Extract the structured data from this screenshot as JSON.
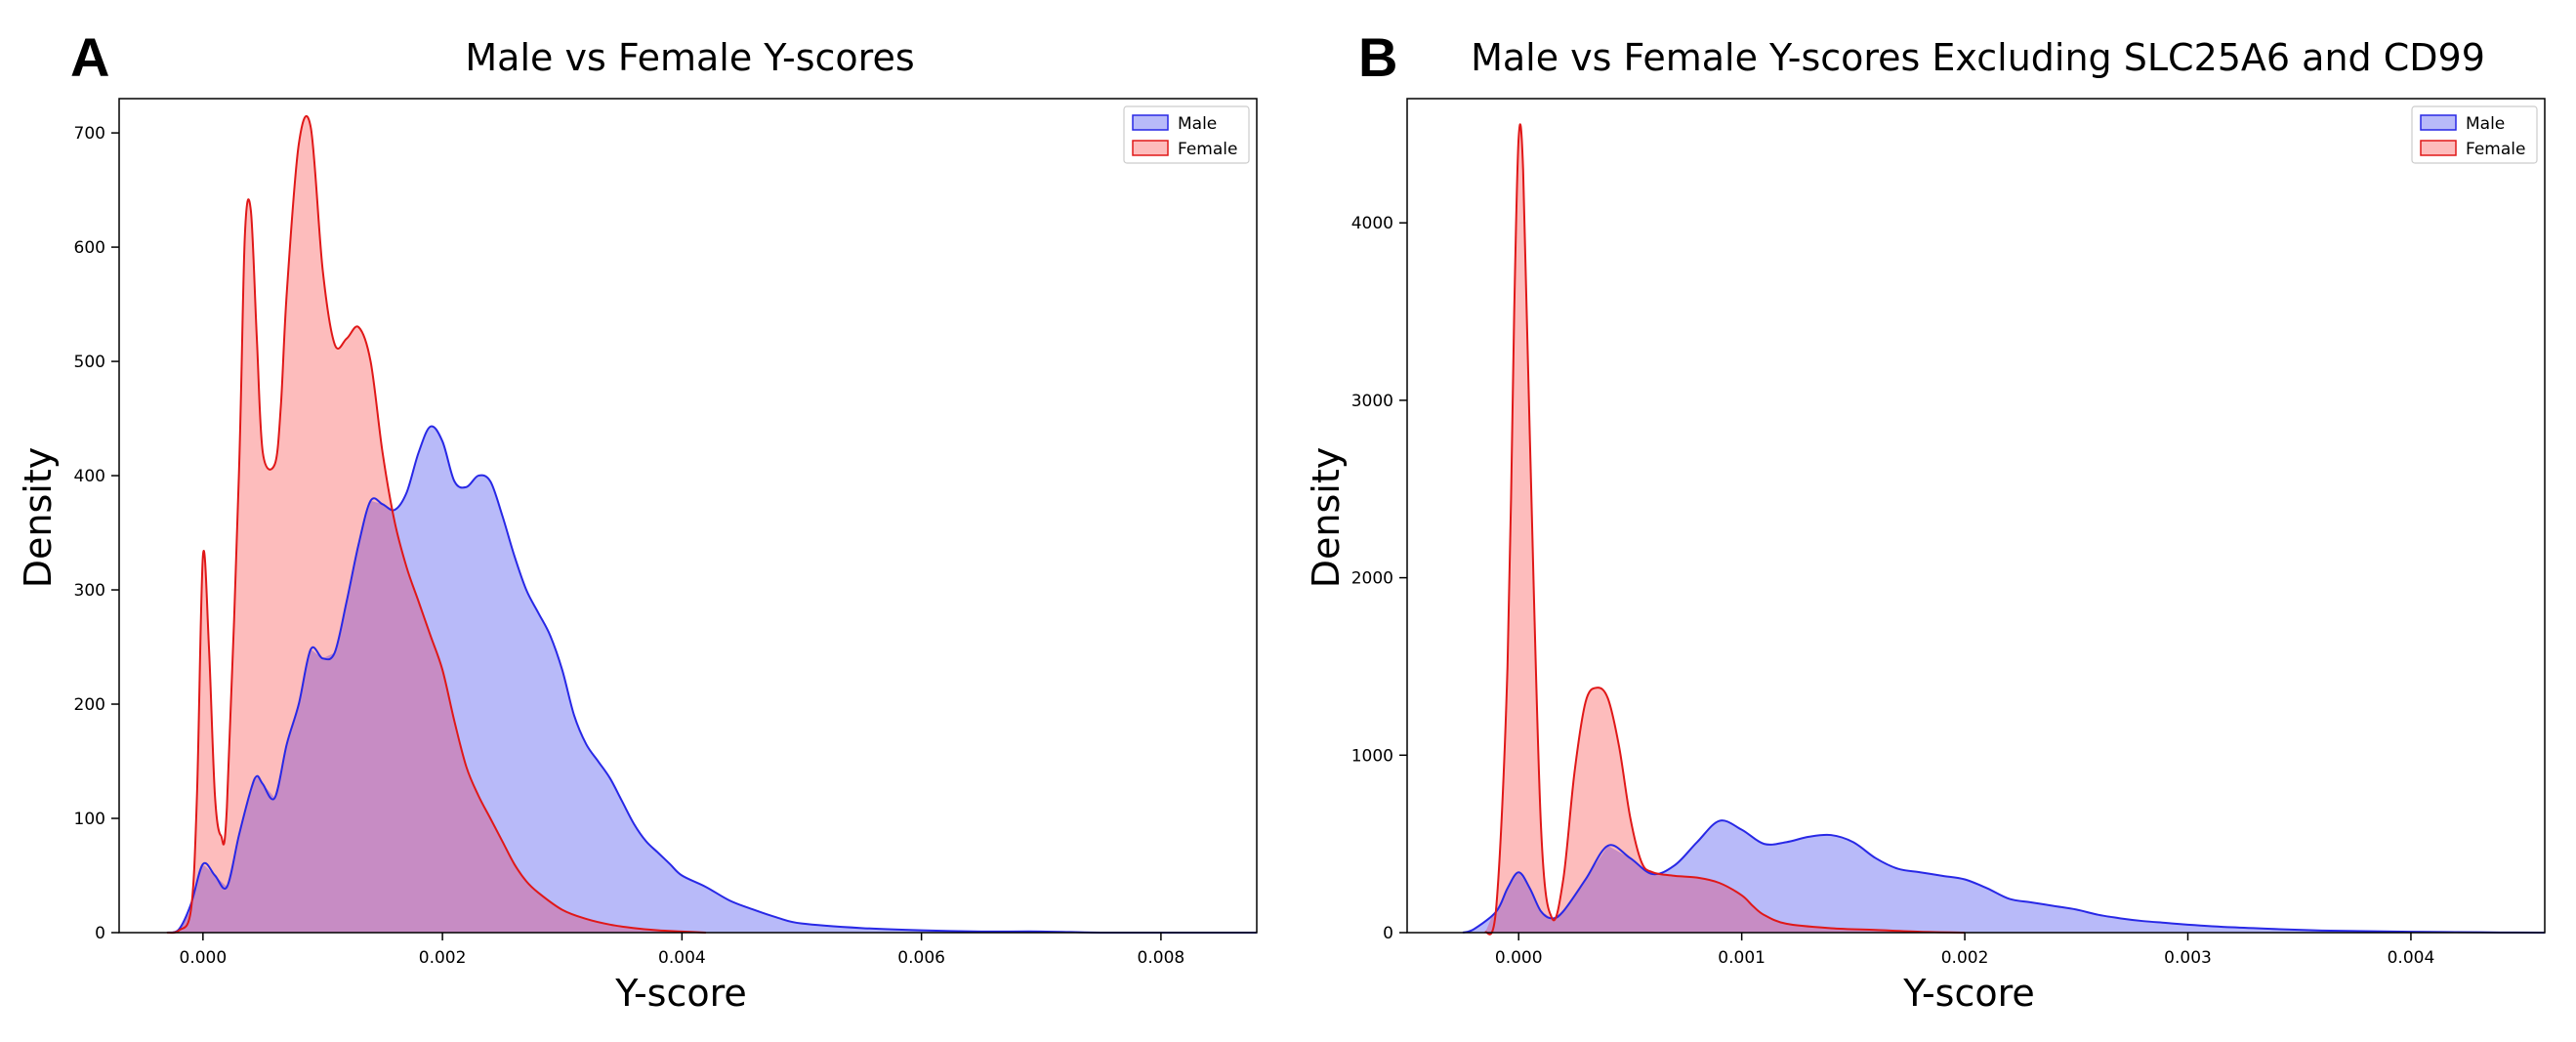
{
  "colors": {
    "male_fill": "#b8baf9",
    "male_line": "#2828e6",
    "female_fill": "#fdbcbc",
    "female_line": "#e01818",
    "overlap_fill": "#c78cc4"
  },
  "chart_data": [
    {
      "type": "area",
      "panel_letter": "A",
      "title": "Male vs Female Y-scores",
      "xlabel": "Y-score",
      "ylabel": "Density",
      "xlim": [
        -0.0007,
        0.0088
      ],
      "ylim": [
        0,
        730
      ],
      "xticks": [
        0,
        0.002,
        0.004,
        0.006,
        0.008
      ],
      "xtick_labels": [
        "0.000",
        "0.002",
        "0.004",
        "0.006",
        "0.008"
      ],
      "yticks": [
        0,
        100,
        200,
        300,
        400,
        500,
        600,
        700
      ],
      "ytick_labels": [
        "0",
        "100",
        "200",
        "300",
        "400",
        "500",
        "600",
        "700"
      ],
      "grid": false,
      "legend_position": "top-right",
      "series": [
        {
          "name": "Male",
          "x": [
            -0.0003,
            -0.0002,
            -0.0001,
            0.0,
            0.0001,
            0.0002,
            0.0003,
            0.0004,
            0.00045,
            0.0005,
            0.0006,
            0.0007,
            0.0008,
            0.0009,
            0.001,
            0.0011,
            0.0012,
            0.0013,
            0.0014,
            0.0015,
            0.0016,
            0.0017,
            0.0018,
            0.0019,
            0.002,
            0.0021,
            0.0022,
            0.0023,
            0.0024,
            0.0025,
            0.0026,
            0.0027,
            0.0028,
            0.0029,
            0.003,
            0.0031,
            0.0032,
            0.0033,
            0.0034,
            0.0035,
            0.0036,
            0.0037,
            0.0038,
            0.0039,
            0.004,
            0.0042,
            0.0044,
            0.0046,
            0.0048,
            0.005,
            0.0055,
            0.006,
            0.0065,
            0.007,
            0.0075,
            0.008,
            0.0085,
            0.0088
          ],
          "y": [
            0,
            3,
            25,
            60,
            50,
            40,
            85,
            125,
            137,
            130,
            118,
            165,
            200,
            248,
            240,
            245,
            290,
            340,
            378,
            375,
            370,
            385,
            420,
            443,
            430,
            395,
            390,
            400,
            395,
            365,
            330,
            300,
            280,
            260,
            230,
            190,
            165,
            150,
            135,
            115,
            95,
            80,
            70,
            60,
            50,
            40,
            28,
            20,
            13,
            8,
            4,
            2,
            1,
            1,
            0,
            0,
            0,
            0
          ]
        },
        {
          "name": "Female",
          "x": [
            -0.0003,
            -0.0002,
            -0.0001,
            -5e-05,
            0.0,
            5e-05,
            0.0001,
            0.00015,
            0.0002,
            0.0003,
            0.00035,
            0.0004,
            0.00045,
            0.0005,
            0.0006,
            0.00065,
            0.0007,
            0.0008,
            0.0009,
            0.001,
            0.0011,
            0.0012,
            0.0013,
            0.0014,
            0.0015,
            0.0016,
            0.0017,
            0.0018,
            0.0019,
            0.002,
            0.0021,
            0.0022,
            0.0023,
            0.0024,
            0.0025,
            0.0026,
            0.0027,
            0.0028,
            0.003,
            0.0032,
            0.0034,
            0.0036,
            0.0038,
            0.004,
            0.0042
          ],
          "y": [
            0,
            2,
            20,
            120,
            330,
            250,
            120,
            85,
            110,
            400,
            610,
            632,
            520,
            420,
            410,
            460,
            560,
            690,
            705,
            580,
            515,
            520,
            530,
            500,
            420,
            360,
            320,
            290,
            260,
            230,
            185,
            145,
            120,
            100,
            80,
            60,
            45,
            35,
            20,
            12,
            7,
            4,
            2,
            1,
            0
          ]
        }
      ]
    },
    {
      "type": "area",
      "panel_letter": "B",
      "title": "Male vs Female Y-scores Excluding SLC25A6 and CD99",
      "xlabel": "Y-score",
      "ylabel": "Density",
      "xlim": [
        -0.0005,
        0.0046
      ],
      "ylim": [
        0,
        4700
      ],
      "xticks": [
        0,
        0.001,
        0.002,
        0.003,
        0.004
      ],
      "xtick_labels": [
        "0.000",
        "0.001",
        "0.002",
        "0.003",
        "0.004"
      ],
      "yticks": [
        0,
        1000,
        2000,
        3000,
        4000
      ],
      "ytick_labels": [
        "0",
        "1000",
        "2000",
        "3000",
        "4000"
      ],
      "grid": false,
      "legend_position": "top-right",
      "series": [
        {
          "name": "Male",
          "x": [
            -0.00025,
            -0.0002,
            -0.0001,
            -5e-05,
            0.0,
            5e-05,
            0.0001,
            0.00015,
            0.0002,
            0.0003,
            0.0004,
            0.0005,
            0.0006,
            0.0007,
            0.0008,
            0.0009,
            0.001,
            0.0011,
            0.0012,
            0.0013,
            0.0014,
            0.0015,
            0.0016,
            0.0017,
            0.0018,
            0.0019,
            0.002,
            0.0021,
            0.0022,
            0.0023,
            0.0024,
            0.0025,
            0.0026,
            0.0027,
            0.0028,
            0.0029,
            0.003,
            0.0032,
            0.0034,
            0.0036,
            0.0038,
            0.004,
            0.0042,
            0.0044,
            0.0046
          ],
          "y": [
            0,
            20,
            120,
            250,
            340,
            250,
            120,
            80,
            120,
            300,
            490,
            420,
            330,
            380,
            510,
            630,
            580,
            500,
            510,
            540,
            550,
            510,
            420,
            360,
            340,
            320,
            300,
            250,
            190,
            170,
            150,
            130,
            100,
            80,
            65,
            55,
            45,
            30,
            20,
            12,
            8,
            5,
            3,
            1,
            0
          ]
        },
        {
          "name": "Female",
          "x": [
            -0.00015,
            -0.0001,
            -5e-05,
            -2e-05,
            0.0,
            2e-05,
            5e-05,
            0.0001,
            0.00015,
            0.0002,
            0.00025,
            0.0003,
            0.00035,
            0.0004,
            0.00045,
            0.0005,
            0.00055,
            0.0006,
            0.0007,
            0.0008,
            0.0009,
            0.001,
            0.00105,
            0.0011,
            0.0012,
            0.0014,
            0.0016,
            0.0018,
            0.002
          ],
          "y": [
            0,
            150,
            1500,
            3500,
            4480,
            4300,
            2800,
            600,
            80,
            300,
            900,
            1300,
            1380,
            1320,
            1050,
            650,
            400,
            340,
            320,
            310,
            280,
            210,
            150,
            100,
            50,
            25,
            15,
            5,
            0
          ]
        }
      ]
    }
  ]
}
